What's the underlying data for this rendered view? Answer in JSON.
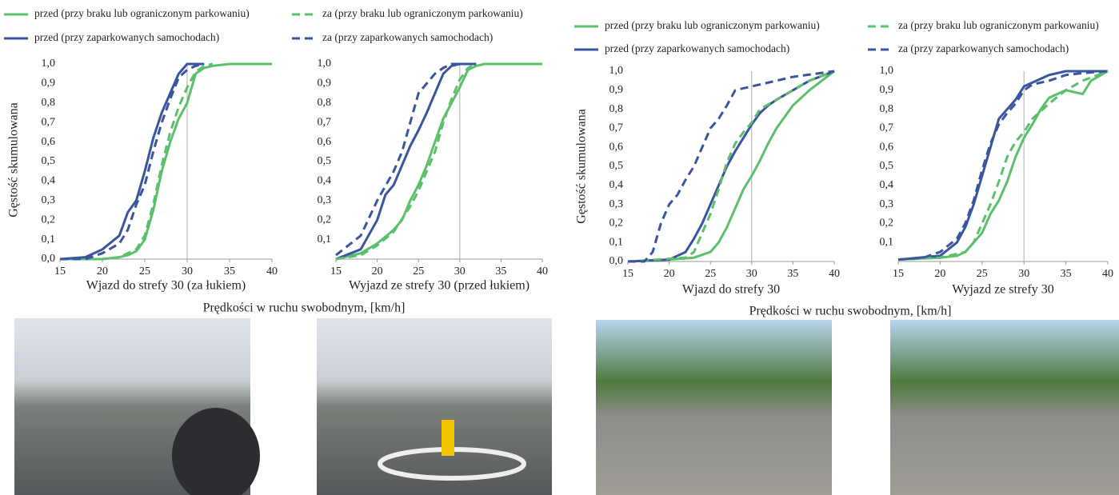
{
  "panels": [
    {
      "ylabel": "Gęstość skumulowana",
      "caption": "Prędkości w ruchu swobodnym, [km/h]"
    },
    {
      "ylabel": "Gęstość skumulowana",
      "caption": "Prędkości w ruchu swobodnym, [km/h]"
    }
  ],
  "chart_data": [
    {
      "type": "line",
      "xlabel": "Wjazd do strefy 30 (za łukiem)",
      "xlim": [
        15,
        40
      ],
      "xticks": [
        15,
        20,
        25,
        30,
        35,
        40
      ],
      "ylim": [
        0,
        1
      ],
      "yticks": [
        {
          "value": 0,
          "label": "0,0"
        },
        {
          "value": 0.1,
          "label": "0,1"
        },
        {
          "value": 0.2,
          "label": "0,2"
        },
        {
          "value": 0.3,
          "label": "0,3"
        },
        {
          "value": 0.4,
          "label": "0,4"
        },
        {
          "value": 0.5,
          "label": "0,5"
        },
        {
          "value": 0.6,
          "label": "0,6"
        },
        {
          "value": 0.7,
          "label": "0,7"
        },
        {
          "value": 0.8,
          "label": "0,8"
        },
        {
          "value": 0.9,
          "label": "0,9"
        },
        {
          "value": 1,
          "label": "1,0"
        }
      ],
      "reference_line": 30,
      "series": [
        {
          "name": "przed (przy braku lub ograniczonym parkowaniu)",
          "color": "#5cbf6c",
          "dash": false,
          "x": [
            15,
            18,
            20,
            22,
            23,
            24,
            25,
            26,
            27,
            28,
            29,
            30,
            31,
            32,
            33,
            35,
            40
          ],
          "values": [
            0,
            0,
            0,
            0.01,
            0.02,
            0.04,
            0.1,
            0.25,
            0.45,
            0.6,
            0.72,
            0.8,
            0.95,
            0.98,
            0.99,
            1,
            1
          ]
        },
        {
          "name": "przed (przy zaparkowanych samochodach)",
          "color": "#3a55a0",
          "dash": false,
          "x": [
            15,
            18,
            20,
            22,
            23,
            24,
            25,
            26,
            27,
            28,
            29,
            30,
            31,
            32
          ],
          "values": [
            0,
            0.01,
            0.05,
            0.12,
            0.24,
            0.3,
            0.45,
            0.62,
            0.75,
            0.85,
            0.95,
            1,
            1,
            1
          ]
        },
        {
          "name": "za (przy braku lub ograniczonym parkowaniu)",
          "color": "#5cbf6c",
          "dash": true,
          "x": [
            15,
            20,
            22,
            24,
            25,
            26,
            27,
            28,
            29,
            30,
            31,
            32,
            33
          ],
          "values": [
            0,
            0,
            0.01,
            0.05,
            0.12,
            0.28,
            0.48,
            0.65,
            0.78,
            0.88,
            0.96,
            0.99,
            1
          ]
        },
        {
          "name": "za (przy zaparkowanych samochodach)",
          "color": "#3a55a0",
          "dash": true,
          "x": [
            15,
            18,
            20,
            22,
            23,
            24,
            25,
            26,
            27,
            28,
            29,
            30,
            31,
            32
          ],
          "values": [
            0,
            0,
            0.03,
            0.08,
            0.15,
            0.28,
            0.38,
            0.55,
            0.7,
            0.82,
            0.93,
            0.97,
            0.99,
            1
          ]
        }
      ]
    },
    {
      "type": "line",
      "xlabel": "Wyjazd ze strefy 30 (przed łukiem)",
      "xlim": [
        15,
        40
      ],
      "xticks": [
        15,
        20,
        25,
        30,
        35,
        40
      ],
      "ylim": [
        0,
        1
      ],
      "yticks": [
        {
          "value": 0.1,
          "label": "0,1"
        },
        {
          "value": 0.2,
          "label": "0,2"
        },
        {
          "value": 0.3,
          "label": "0,3"
        },
        {
          "value": 0.4,
          "label": "0,4"
        },
        {
          "value": 0.5,
          "label": "0,5"
        },
        {
          "value": 0.6,
          "label": "0,6"
        },
        {
          "value": 0.7,
          "label": "0,7"
        },
        {
          "value": 0.8,
          "label": "0,8"
        },
        {
          "value": 0.9,
          "label": "0,9"
        },
        {
          "value": 1,
          "label": "1,0"
        }
      ],
      "reference_line": 30,
      "series": [
        {
          "color": "#5cbf6c",
          "dash": false,
          "x": [
            15,
            18,
            20,
            22,
            23,
            24,
            25,
            26,
            27,
            28,
            29,
            30,
            31,
            32,
            33,
            40
          ],
          "values": [
            0,
            0.03,
            0.08,
            0.15,
            0.2,
            0.3,
            0.38,
            0.48,
            0.6,
            0.72,
            0.8,
            0.88,
            0.97,
            0.99,
            1,
            1
          ]
        },
        {
          "color": "#3a55a0",
          "dash": false,
          "x": [
            15,
            18,
            20,
            21,
            22,
            23,
            24,
            25,
            26,
            27,
            28,
            29,
            30,
            32
          ],
          "values": [
            0,
            0.05,
            0.2,
            0.33,
            0.38,
            0.48,
            0.58,
            0.66,
            0.75,
            0.85,
            0.95,
            0.99,
            1,
            1
          ]
        },
        {
          "color": "#5cbf6c",
          "dash": true,
          "x": [
            15,
            18,
            20,
            22,
            24,
            25,
            26,
            27,
            28,
            29,
            30,
            31,
            32
          ],
          "values": [
            0,
            0.02,
            0.07,
            0.14,
            0.27,
            0.35,
            0.45,
            0.55,
            0.7,
            0.82,
            0.92,
            0.98,
            1
          ]
        },
        {
          "color": "#3a55a0",
          "dash": true,
          "x": [
            15,
            18,
            20,
            22,
            23,
            24,
            25,
            26,
            27,
            28,
            29,
            30
          ],
          "values": [
            0.02,
            0.12,
            0.3,
            0.45,
            0.55,
            0.7,
            0.85,
            0.9,
            0.95,
            0.98,
            1,
            1
          ]
        }
      ]
    },
    {
      "type": "line",
      "xlabel": "Wjazd do strefy 30",
      "xlim": [
        15,
        40
      ],
      "xticks": [
        15,
        20,
        25,
        30,
        35,
        40
      ],
      "ylim": [
        0,
        1
      ],
      "yticks": [
        {
          "value": 0,
          "label": "0,0"
        },
        {
          "value": 0.1,
          "label": "0,1"
        },
        {
          "value": 0.2,
          "label": "0,2"
        },
        {
          "value": 0.3,
          "label": "0,3"
        },
        {
          "value": 0.4,
          "label": "0,4"
        },
        {
          "value": 0.5,
          "label": "0,5"
        },
        {
          "value": 0.6,
          "label": "0,6"
        },
        {
          "value": 0.7,
          "label": "0,7"
        },
        {
          "value": 0.8,
          "label": "0,8"
        },
        {
          "value": 0.9,
          "label": "0,9"
        },
        {
          "value": 1,
          "label": "1,0"
        }
      ],
      "reference_line": 30,
      "series": [
        {
          "name": "przed (przy braku lub ograniczonym parkowaniu)",
          "color": "#5cbf6c",
          "dash": false,
          "x": [
            15,
            20,
            23,
            25,
            26,
            27,
            28,
            29,
            30,
            31,
            32,
            33,
            35,
            37,
            40
          ],
          "values": [
            0,
            0.01,
            0.02,
            0.05,
            0.1,
            0.18,
            0.28,
            0.38,
            0.45,
            0.53,
            0.62,
            0.7,
            0.82,
            0.9,
            1
          ]
        },
        {
          "name": "przed (przy zaparkowanych samochodach)",
          "color": "#3a55a0",
          "dash": false,
          "x": [
            15,
            20,
            22,
            23,
            24,
            25,
            26,
            27,
            28,
            29,
            30,
            31,
            32,
            33,
            35,
            37,
            40
          ],
          "values": [
            0,
            0.01,
            0.05,
            0.12,
            0.2,
            0.3,
            0.4,
            0.5,
            0.58,
            0.65,
            0.72,
            0.78,
            0.82,
            0.85,
            0.9,
            0.95,
            1
          ]
        },
        {
          "name": "za (przy braku lub ograniczonym parkowaniu)",
          "color": "#5cbf6c",
          "dash": true,
          "x": [
            15,
            22,
            23,
            24,
            25,
            26,
            27,
            28,
            29,
            30,
            31,
            33,
            35,
            37,
            40
          ],
          "values": [
            0,
            0.02,
            0.05,
            0.15,
            0.25,
            0.38,
            0.52,
            0.62,
            0.68,
            0.73,
            0.8,
            0.85,
            0.9,
            0.95,
            1
          ]
        },
        {
          "name": "za (przy zaparkowanych samochodach)",
          "color": "#3a55a0",
          "dash": true,
          "x": [
            15,
            17,
            18,
            19,
            20,
            21,
            22,
            23,
            24,
            25,
            26,
            27,
            28,
            30,
            33,
            35,
            40
          ],
          "values": [
            0,
            0,
            0.05,
            0.2,
            0.3,
            0.35,
            0.43,
            0.5,
            0.6,
            0.7,
            0.75,
            0.82,
            0.9,
            0.92,
            0.95,
            0.97,
            1
          ]
        }
      ]
    },
    {
      "type": "line",
      "xlabel": "Wyjazd ze strefy 30",
      "xlim": [
        15,
        40
      ],
      "xticks": [
        15,
        20,
        25,
        30,
        35,
        40
      ],
      "ylim": [
        0,
        1
      ],
      "yticks": [
        {
          "value": 0.1,
          "label": "0,1"
        },
        {
          "value": 0.2,
          "label": "0,2"
        },
        {
          "value": 0.3,
          "label": "0,3"
        },
        {
          "value": 0.4,
          "label": "0,4"
        },
        {
          "value": 0.5,
          "label": "0,5"
        },
        {
          "value": 0.6,
          "label": "0,6"
        },
        {
          "value": 0.7,
          "label": "0,7"
        },
        {
          "value": 0.8,
          "label": "0,8"
        },
        {
          "value": 0.9,
          "label": "0,9"
        },
        {
          "value": 1,
          "label": "1,0"
        }
      ],
      "reference_line": 30,
      "series": [
        {
          "color": "#5cbf6c",
          "dash": false,
          "x": [
            15,
            20,
            22,
            23,
            24,
            25,
            26,
            27,
            28,
            29,
            30,
            31,
            32,
            33,
            35,
            37,
            38,
            40
          ],
          "values": [
            0.01,
            0.02,
            0.03,
            0.05,
            0.1,
            0.15,
            0.25,
            0.32,
            0.42,
            0.55,
            0.65,
            0.72,
            0.8,
            0.86,
            0.9,
            0.88,
            0.95,
            1
          ]
        },
        {
          "color": "#3a55a0",
          "dash": false,
          "x": [
            15,
            20,
            22,
            23,
            24,
            25,
            26,
            27,
            28,
            29,
            30,
            31,
            33,
            35,
            40
          ],
          "values": [
            0.01,
            0.03,
            0.1,
            0.18,
            0.3,
            0.45,
            0.6,
            0.75,
            0.8,
            0.85,
            0.92,
            0.94,
            0.98,
            1,
            1
          ]
        },
        {
          "color": "#5cbf6c",
          "dash": true,
          "x": [
            15,
            20,
            23,
            24,
            25,
            26,
            27,
            28,
            29,
            30,
            31,
            33,
            35,
            37,
            40
          ],
          "values": [
            0.01,
            0.02,
            0.05,
            0.1,
            0.2,
            0.3,
            0.42,
            0.55,
            0.63,
            0.68,
            0.75,
            0.83,
            0.9,
            0.95,
            1
          ]
        },
        {
          "color": "#3a55a0",
          "dash": true,
          "x": [
            15,
            18,
            20,
            22,
            23,
            24,
            25,
            26,
            27,
            28,
            29,
            30,
            31,
            33,
            35,
            37,
            40
          ],
          "values": [
            0.01,
            0.02,
            0.05,
            0.12,
            0.2,
            0.32,
            0.48,
            0.62,
            0.72,
            0.78,
            0.83,
            0.9,
            0.93,
            0.95,
            0.98,
            0.99,
            1
          ]
        }
      ]
    }
  ]
}
